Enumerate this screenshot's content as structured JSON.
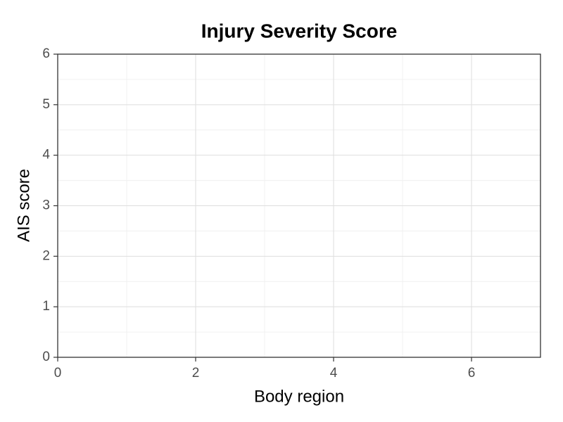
{
  "chart_data": {
    "type": "scatter",
    "title": "Injury Severity Score",
    "xlabel": "Body region",
    "ylabel": "AIS score",
    "x": [],
    "y": [],
    "color": "#000000",
    "xlim": [
      0,
      7
    ],
    "xticks": [
      0,
      2,
      4,
      6
    ],
    "ylim": [
      0,
      6
    ],
    "yticks": [
      0,
      1,
      2,
      3,
      4,
      5,
      6
    ],
    "grid": true
  }
}
